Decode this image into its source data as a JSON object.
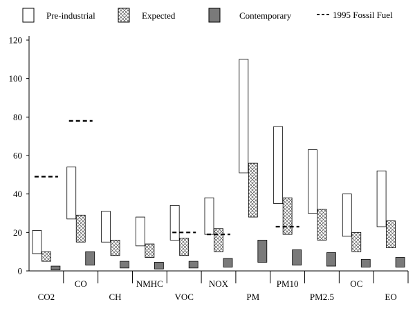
{
  "chart_data": {
    "type": "floating-bar",
    "title": "",
    "xlabel": "",
    "ylabel": "",
    "ylim": [
      0,
      120
    ],
    "yticks": [
      0,
      20,
      40,
      60,
      80,
      100,
      120
    ],
    "grid": false,
    "legend_position": "top",
    "categories": [
      "CO2",
      "CO",
      "CH",
      "NMHC",
      "VOC",
      "NOX",
      "PM",
      "PM10",
      "PM2.5",
      "OC",
      "EO"
    ],
    "category_label_rows": [
      "low",
      "high",
      "low",
      "high",
      "low",
      "high",
      "low",
      "high",
      "low",
      "high",
      "low"
    ],
    "series": [
      {
        "name": "Pre-industrial",
        "fill": "white",
        "ranges": [
          [
            9,
            21
          ],
          [
            27,
            54
          ],
          [
            15,
            31
          ],
          [
            13,
            28
          ],
          [
            16,
            34
          ],
          [
            19,
            38
          ],
          [
            51,
            110
          ],
          [
            35,
            75
          ],
          [
            30,
            63
          ],
          [
            18,
            40
          ],
          [
            23,
            52
          ]
        ]
      },
      {
        "name": "Expected",
        "fill": "crosshatch",
        "ranges": [
          [
            5,
            10
          ],
          [
            15,
            29
          ],
          [
            8,
            16
          ],
          [
            7,
            14
          ],
          [
            8,
            17
          ],
          [
            10,
            22
          ],
          [
            28,
            56
          ],
          [
            19,
            38
          ],
          [
            16,
            32
          ],
          [
            10,
            20
          ],
          [
            12,
            26
          ]
        ]
      },
      {
        "name": "Contemporary",
        "fill": "gray",
        "ranges": [
          [
            0.5,
            2.5
          ],
          [
            3,
            10
          ],
          [
            1.5,
            5
          ],
          [
            1,
            4.5
          ],
          [
            1.5,
            5
          ],
          [
            2,
            6.5
          ],
          [
            4.5,
            16
          ],
          [
            3,
            11
          ],
          [
            2.5,
            9.5
          ],
          [
            2,
            6
          ],
          [
            2,
            7
          ]
        ]
      }
    ],
    "markers": {
      "name": "1995 Fossil Fuel",
      "style": "dashed",
      "values": [
        {
          "category": "CO2",
          "value": 49
        },
        {
          "category": "CO",
          "value": 78
        },
        {
          "category": "VOC",
          "value": 20
        },
        {
          "category": "NOX",
          "value": 19
        },
        {
          "category": "PM10",
          "value": 23
        }
      ]
    },
    "colors": {
      "contemporary": "#7a7a7a",
      "hatch": "#666666",
      "axis": "#000000"
    }
  }
}
